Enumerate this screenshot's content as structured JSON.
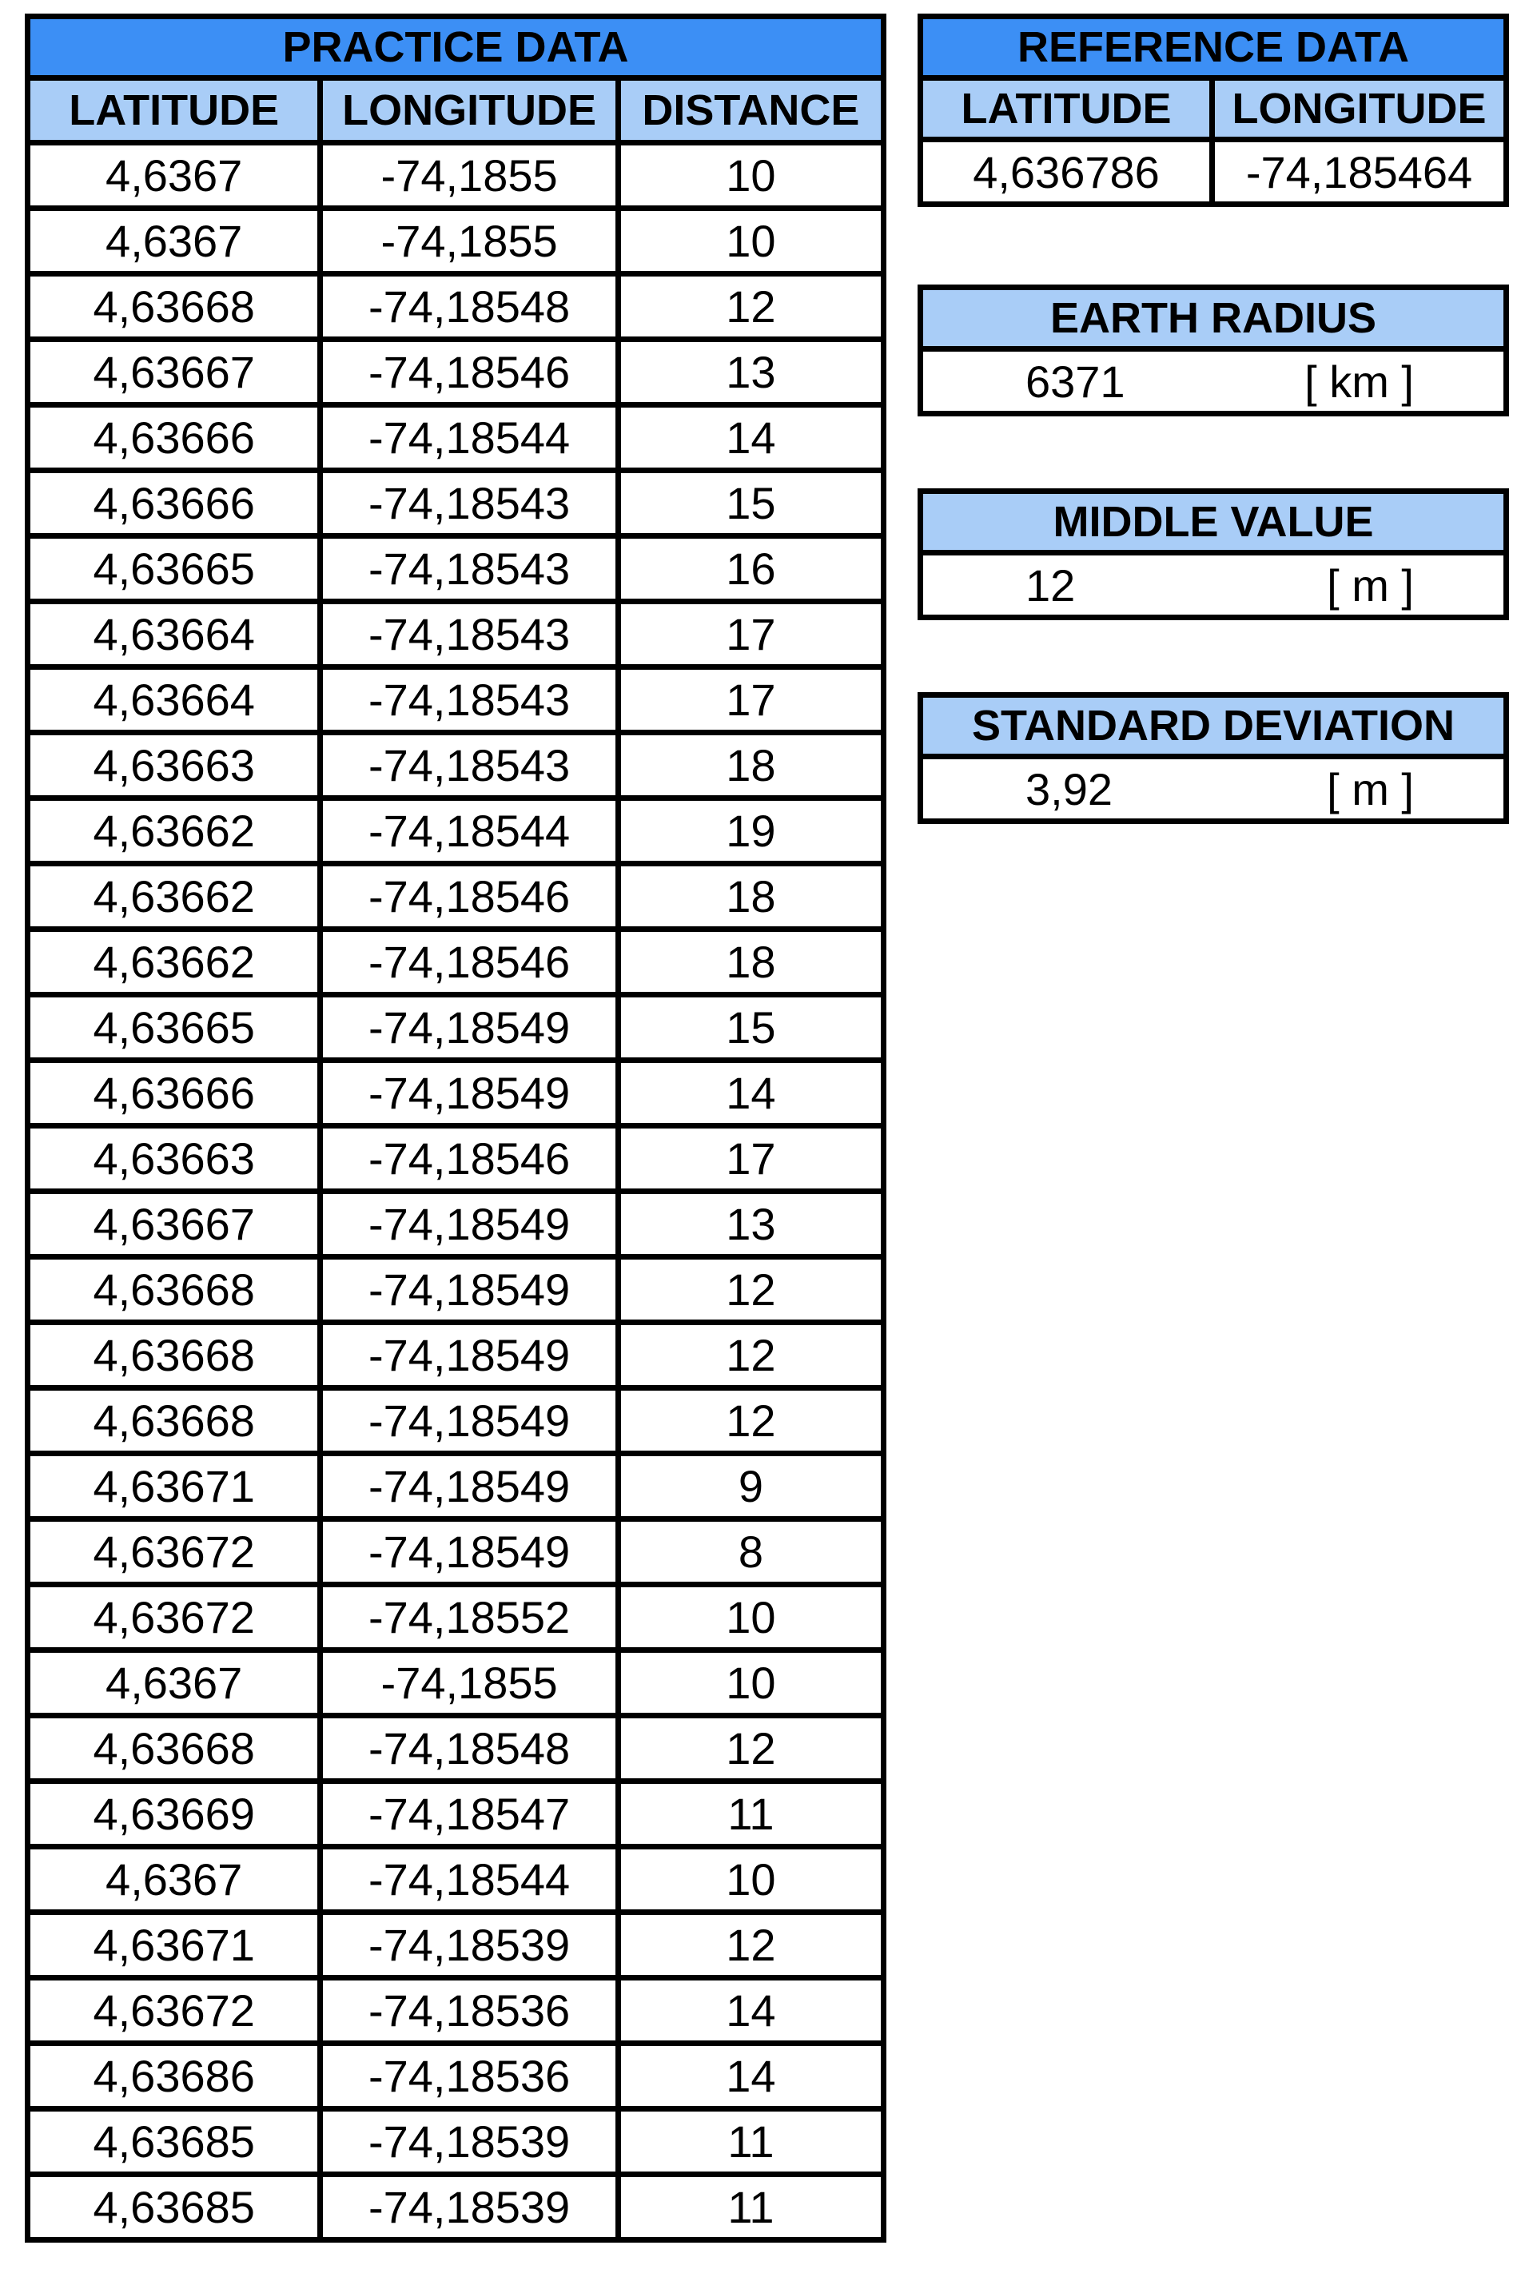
{
  "colors": {
    "header_title_bg": "#3c8ff5",
    "header_col_bg": "#a9cdf7",
    "border": "#000000",
    "cell_bg": "#ffffff"
  },
  "practice": {
    "title": "PRACTICE DATA",
    "headers": [
      "LATITUDE",
      "LONGITUDE",
      "DISTANCE"
    ],
    "rows": [
      [
        "4,6367",
        "-74,1855",
        "10"
      ],
      [
        "4,6367",
        "-74,1855",
        "10"
      ],
      [
        "4,63668",
        "-74,18548",
        "12"
      ],
      [
        "4,63667",
        "-74,18546",
        "13"
      ],
      [
        "4,63666",
        "-74,18544",
        "14"
      ],
      [
        "4,63666",
        "-74,18543",
        "15"
      ],
      [
        "4,63665",
        "-74,18543",
        "16"
      ],
      [
        "4,63664",
        "-74,18543",
        "17"
      ],
      [
        "4,63664",
        "-74,18543",
        "17"
      ],
      [
        "4,63663",
        "-74,18543",
        "18"
      ],
      [
        "4,63662",
        "-74,18544",
        "19"
      ],
      [
        "4,63662",
        "-74,18546",
        "18"
      ],
      [
        "4,63662",
        "-74,18546",
        "18"
      ],
      [
        "4,63665",
        "-74,18549",
        "15"
      ],
      [
        "4,63666",
        "-74,18549",
        "14"
      ],
      [
        "4,63663",
        "-74,18546",
        "17"
      ],
      [
        "4,63667",
        "-74,18549",
        "13"
      ],
      [
        "4,63668",
        "-74,18549",
        "12"
      ],
      [
        "4,63668",
        "-74,18549",
        "12"
      ],
      [
        "4,63668",
        "-74,18549",
        "12"
      ],
      [
        "4,63671",
        "-74,18549",
        "9"
      ],
      [
        "4,63672",
        "-74,18549",
        "8"
      ],
      [
        "4,63672",
        "-74,18552",
        "10"
      ],
      [
        "4,6367",
        "-74,1855",
        "10"
      ],
      [
        "4,63668",
        "-74,18548",
        "12"
      ],
      [
        "4,63669",
        "-74,18547",
        "11"
      ],
      [
        "4,6367",
        "-74,18544",
        "10"
      ],
      [
        "4,63671",
        "-74,18539",
        "12"
      ],
      [
        "4,63672",
        "-74,18536",
        "14"
      ],
      [
        "4,63686",
        "-74,18536",
        "14"
      ],
      [
        "4,63685",
        "-74,18539",
        "11"
      ],
      [
        "4,63685",
        "-74,18539",
        "11"
      ]
    ]
  },
  "reference": {
    "title": "REFERENCE DATA",
    "headers": [
      "LATITUDE",
      "LONGITUDE"
    ],
    "latitude": "4,636786",
    "longitude": "-74,185464"
  },
  "earth_radius": {
    "title": "EARTH RADIUS",
    "value": "6371",
    "unit": "[ km ]"
  },
  "middle_value": {
    "title": "MIDDLE VALUE",
    "value": "12",
    "unit": "[ m ]"
  },
  "standard_deviation": {
    "title": "STANDARD DEVIATION",
    "value": "3,92",
    "unit": "[ m ]"
  }
}
